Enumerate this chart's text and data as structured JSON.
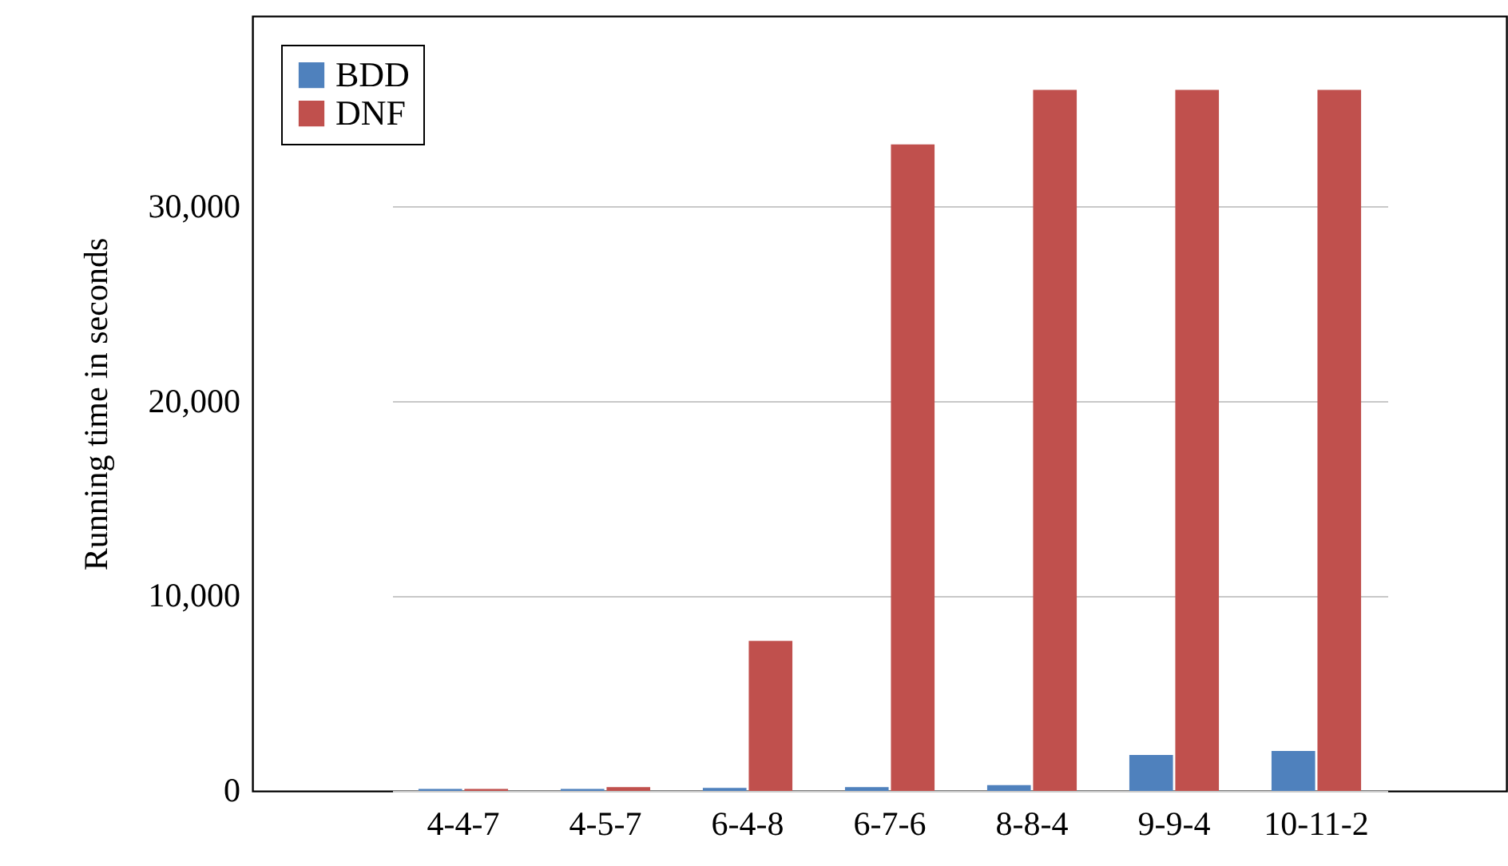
{
  "chart_data": {
    "type": "bar",
    "ylabel": "Running time in seconds",
    "categories": [
      "4-4-7",
      "4-5-7",
      "6-4-8",
      "6-7-6",
      "8-8-4",
      "9-9-4",
      "10-11-2"
    ],
    "series": [
      {
        "name": "BDD",
        "color": "#4f81bd",
        "values": [
          100,
          100,
          150,
          200,
          300,
          1850,
          2050
        ]
      },
      {
        "name": "DNF",
        "color": "#c0504d",
        "values": [
          100,
          200,
          7700,
          33200,
          36000,
          36000,
          36000
        ]
      }
    ],
    "ylim": [
      0,
      39800
    ],
    "yticks": [
      {
        "value": 0,
        "label": "0"
      },
      {
        "value": 10000,
        "label": "10,000"
      },
      {
        "value": 20000,
        "label": "20,000"
      },
      {
        "value": 30000,
        "label": "30,000"
      }
    ],
    "grid": "y",
    "legend": "top left"
  }
}
